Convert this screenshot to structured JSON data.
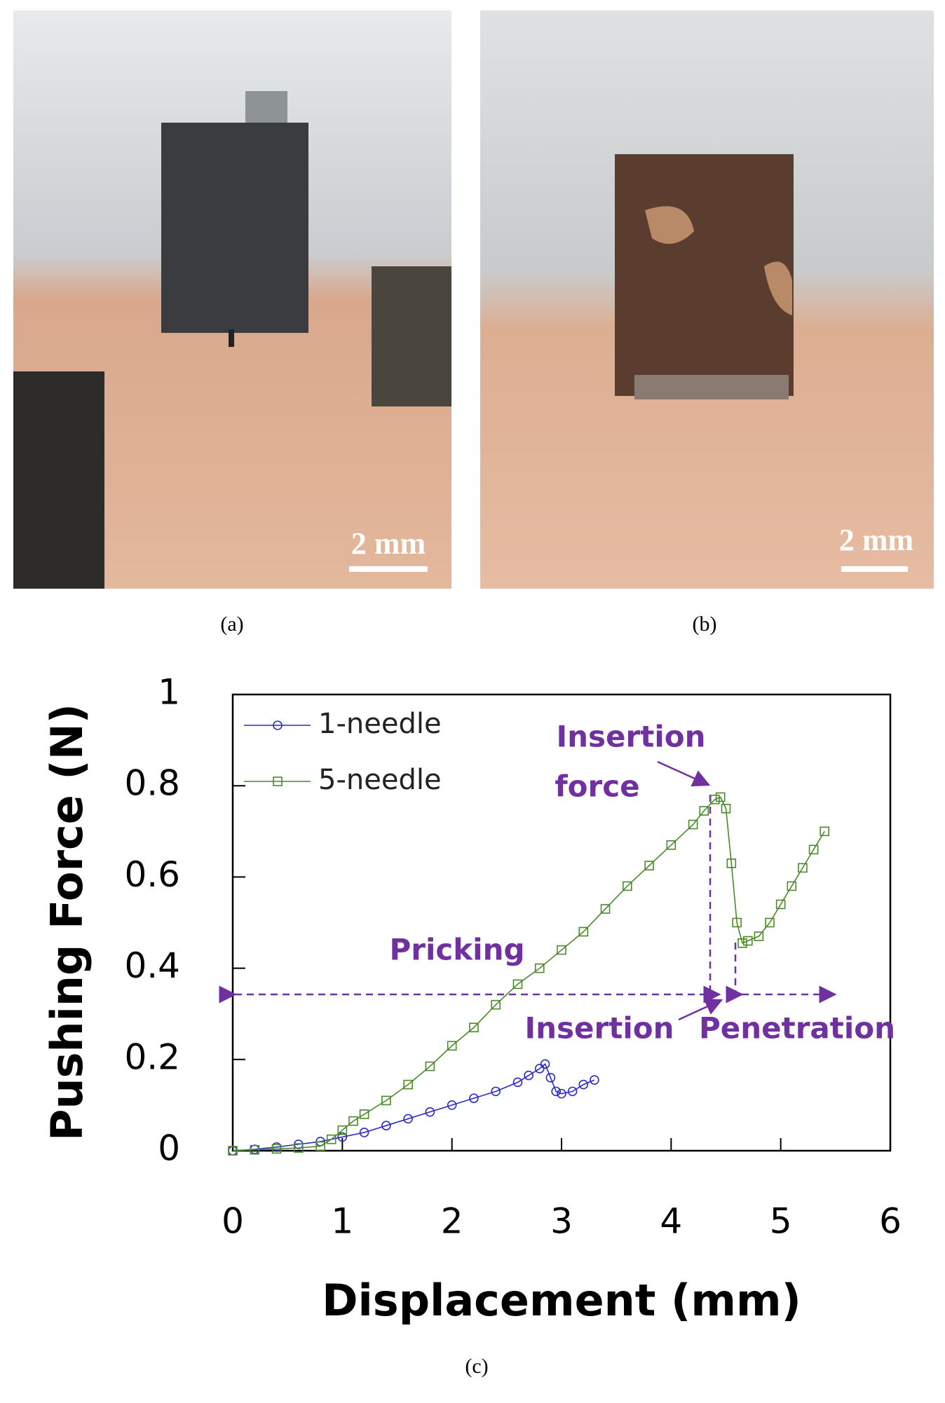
{
  "panels": [
    {
      "caption": "(a)",
      "scale_label": "2 mm"
    },
    {
      "caption": "(b)",
      "scale_label": "2 mm"
    }
  ],
  "chart_data": {
    "type": "line",
    "caption": "(c)",
    "x_label": "Displacement (mm)",
    "y_label": "Pushing Force (N)",
    "xlim": [
      0,
      6
    ],
    "ylim": [
      0,
      1
    ],
    "xticks": [
      0,
      1,
      2,
      3,
      4,
      5,
      6
    ],
    "yticks": [
      0,
      0.2,
      0.4,
      0.6,
      0.8,
      1
    ],
    "legend": "upper left",
    "annotations": [
      "Insertion",
      "force",
      "Pricking",
      "Insertion",
      "Penetration"
    ],
    "series": [
      {
        "name": "1-needle",
        "color": "#2b2bc8",
        "marker": "circle",
        "x": [
          0,
          0.2,
          0.4,
          0.6,
          0.8,
          1.0,
          1.2,
          1.4,
          1.6,
          1.8,
          2.0,
          2.2,
          2.4,
          2.6,
          2.7,
          2.8,
          2.85,
          2.9,
          2.95,
          3.0,
          3.1,
          3.2,
          3.3
        ],
        "values": [
          0,
          0.003,
          0.008,
          0.014,
          0.02,
          0.03,
          0.04,
          0.055,
          0.07,
          0.085,
          0.1,
          0.115,
          0.13,
          0.15,
          0.165,
          0.18,
          0.19,
          0.16,
          0.13,
          0.125,
          0.13,
          0.145,
          0.155
        ]
      },
      {
        "name": "5-needle",
        "color": "#4a8a2a",
        "marker": "square",
        "x": [
          0,
          0.2,
          0.4,
          0.6,
          0.8,
          0.9,
          1.0,
          1.1,
          1.2,
          1.4,
          1.6,
          1.8,
          2.0,
          2.2,
          2.4,
          2.6,
          2.8,
          3.0,
          3.2,
          3.4,
          3.6,
          3.8,
          4.0,
          4.2,
          4.3,
          4.4,
          4.45,
          4.5,
          4.55,
          4.6,
          4.65,
          4.7,
          4.8,
          4.9,
          5.0,
          5.1,
          5.2,
          5.3,
          5.4
        ],
        "values": [
          0,
          0.002,
          0.004,
          0.006,
          0.01,
          0.025,
          0.045,
          0.065,
          0.08,
          0.11,
          0.145,
          0.185,
          0.23,
          0.27,
          0.32,
          0.365,
          0.4,
          0.44,
          0.48,
          0.53,
          0.58,
          0.625,
          0.67,
          0.715,
          0.745,
          0.77,
          0.775,
          0.75,
          0.63,
          0.5,
          0.455,
          0.46,
          0.47,
          0.5,
          0.54,
          0.58,
          0.62,
          0.66,
          0.7
        ]
      }
    ]
  }
}
